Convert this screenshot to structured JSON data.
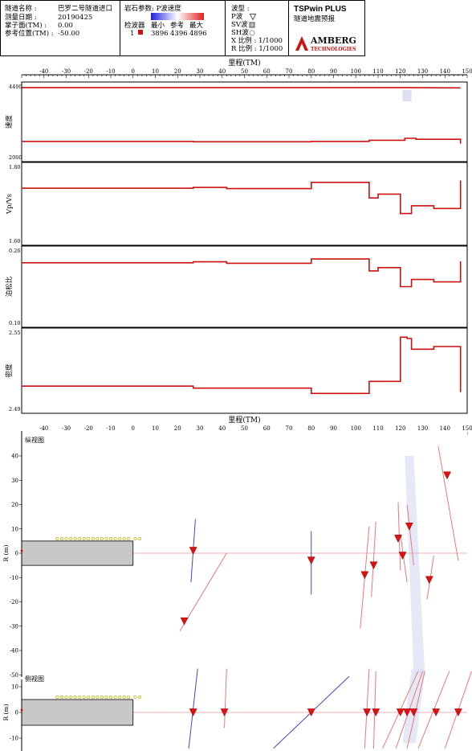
{
  "header": {
    "info_rows": [
      {
        "label": "隧道名称 :",
        "value": "巴罗二号隧道进口"
      },
      {
        "label": "测量日期 :",
        "value": "20190425"
      },
      {
        "label": "掌子面(TM) :",
        "value": "0.00"
      },
      {
        "label": "参考位置(TM) :",
        "value": "-50.00"
      }
    ],
    "rock_param_title": "岩石参数: P波速度",
    "geophone_label": "检波器",
    "geophone_id": "1",
    "col_min": "最小",
    "col_ref": "参考",
    "col_max": "最大",
    "val_min": "3896",
    "val_ref": "4396",
    "val_max": "4896",
    "wave_title": "波型 :",
    "waves": [
      "P波",
      "SV波",
      "SH波"
    ],
    "x_scale": "X 比例 : 1/1000",
    "r_scale": "R 比例 : 1/1000",
    "brand_title": "TSPwin PLUS",
    "brand_subtitle": "隧道地震预报",
    "logo_text_1": "AMBERG",
    "logo_text_2": "TECHNOLOGIES",
    "colors": {
      "min": "#2020e0",
      "max": "#e02020",
      "line": "#cc1111"
    }
  },
  "chart_data": [
    {
      "type": "line",
      "id": "velocity",
      "ylabel": "速度",
      "xlabel": "里程(TM)",
      "ylim": [
        2000,
        4400
      ],
      "ytick_labels": [
        "4400",
        "2000"
      ],
      "x_ticks": [
        -40,
        -30,
        -20,
        -10,
        0,
        10,
        20,
        30,
        40,
        50,
        60,
        70,
        80,
        90,
        100,
        110,
        120,
        130,
        140,
        150
      ],
      "series": [
        {
          "values": [
            [
              -50,
              4300
            ],
            [
              80,
              4300
            ],
            [
              125,
              4300
            ],
            [
              147,
              4290
            ]
          ]
        },
        {
          "values": [
            [
              -50,
              2570
            ],
            [
              27,
              2570
            ],
            [
              27,
              2560
            ],
            [
              80,
              2560
            ],
            [
              80,
              2570
            ],
            [
              106,
              2570
            ],
            [
              106,
              2610
            ],
            [
              122,
              2610
            ],
            [
              122,
              2670
            ],
            [
              127,
              2670
            ],
            [
              127,
              2640
            ],
            [
              147,
              2640
            ],
            [
              147,
              2500
            ]
          ]
        }
      ]
    },
    {
      "type": "line",
      "id": "vpvs",
      "ylabel": "Vp/Vs",
      "ylim": [
        1.6,
        1.8
      ],
      "ytick_labels": [
        "1.80",
        "1.60"
      ],
      "series": [
        {
          "values": [
            [
              -50,
              1.74
            ],
            [
              27,
              1.74
            ],
            [
              27,
              1.742
            ],
            [
              42,
              1.742
            ],
            [
              42,
              1.739
            ],
            [
              80,
              1.739
            ],
            [
              80,
              1.755
            ],
            [
              106,
              1.755
            ],
            [
              106,
              1.715
            ],
            [
              110,
              1.715
            ],
            [
              110,
              1.725
            ],
            [
              120,
              1.725
            ],
            [
              120,
              1.675
            ],
            [
              125,
              1.675
            ],
            [
              125,
              1.695
            ],
            [
              135,
              1.695
            ],
            [
              135,
              1.688
            ],
            [
              147,
              1.688
            ],
            [
              147,
              1.76
            ]
          ]
        }
      ]
    },
    {
      "type": "line",
      "id": "poisson",
      "ylabel": "泊松比",
      "ylim": [
        0.1,
        0.26
      ],
      "ytick_labels": [
        "0.26",
        "0.10"
      ],
      "series": [
        {
          "values": [
            [
              -50,
              0.23
            ],
            [
              27,
              0.23
            ],
            [
              27,
              0.232
            ],
            [
              42,
              0.232
            ],
            [
              42,
              0.229
            ],
            [
              80,
              0.229
            ],
            [
              80,
              0.238
            ],
            [
              106,
              0.238
            ],
            [
              106,
              0.213
            ],
            [
              110,
              0.213
            ],
            [
              110,
              0.22
            ],
            [
              120,
              0.22
            ],
            [
              120,
              0.18
            ],
            [
              125,
              0.18
            ],
            [
              125,
              0.195
            ],
            [
              135,
              0.195
            ],
            [
              135,
              0.19
            ],
            [
              147,
              0.19
            ],
            [
              147,
              0.233
            ]
          ]
        }
      ]
    },
    {
      "type": "line",
      "id": "density",
      "ylabel": "密度",
      "ylim": [
        2.49,
        2.55
      ],
      "ytick_labels": [
        "2.55",
        "2.49"
      ],
      "series": [
        {
          "values": [
            [
              -50,
              2.5085
            ],
            [
              27,
              2.5085
            ],
            [
              27,
              2.507
            ],
            [
              80,
              2.507
            ],
            [
              80,
              2.503
            ],
            [
              106,
              2.503
            ],
            [
              106,
              2.512
            ],
            [
              120,
              2.512
            ],
            [
              120,
              2.545
            ],
            [
              123,
              2.545
            ],
            [
              123,
              2.544
            ],
            [
              125,
              2.544
            ],
            [
              125,
              2.536
            ],
            [
              135,
              2.536
            ],
            [
              135,
              2.538
            ],
            [
              147,
              2.538
            ],
            [
              147,
              2.504
            ]
          ]
        }
      ]
    },
    {
      "type": "scatter",
      "id": "plan-view",
      "title": "纵视图",
      "xlabel": "里程(TM)",
      "ylabel": "R (m)",
      "ylim": [
        -50,
        45
      ],
      "y_ticks": [
        40,
        30,
        20,
        10,
        0,
        -10,
        -20,
        -30,
        -40,
        -50
      ],
      "tunnel": {
        "x0": -50,
        "x1": 0,
        "r0": -5,
        "r1": 5
      },
      "reflectors": [
        {
          "x": 27,
          "r": 1,
          "color": "#4444cc",
          "line": [
            [
              28,
              14
            ],
            [
              26,
              -12
            ]
          ]
        },
        {
          "x": 23,
          "r": -28,
          "color": "#ee7777",
          "line": [
            [
              42,
              0
            ],
            [
              21,
              -32
            ]
          ]
        },
        {
          "x": 80,
          "r": -3,
          "color": "#4444cc",
          "line": [
            [
              80,
              9
            ],
            [
              80,
              -17
            ]
          ]
        },
        {
          "x": 104,
          "r": -9,
          "color": "#ee7777",
          "line": [
            [
              106,
              11
            ],
            [
              102,
              -31
            ]
          ]
        },
        {
          "x": 108,
          "r": -5,
          "color": "#ee7777",
          "line": [
            [
              109,
              13
            ],
            [
              107,
              -18
            ]
          ]
        },
        {
          "x": 119,
          "r": 6,
          "color": "#ee7777",
          "line": [
            [
              119,
              21
            ],
            [
              120,
              -7
            ]
          ]
        },
        {
          "x": 124,
          "r": 11,
          "color": "#ee7777",
          "line": [
            [
              123,
              20
            ],
            [
              126,
              -5
            ]
          ]
        },
        {
          "x": 121,
          "r": -1,
          "color": "#ee7777",
          "line": [
            [
              120,
              8
            ],
            [
              123,
              -12
            ]
          ]
        },
        {
          "x": 133,
          "r": -11,
          "color": "#ee7777",
          "line": [
            [
              135,
              -1
            ],
            [
              132,
              -19
            ]
          ]
        },
        {
          "x": 141,
          "r": 32,
          "color": "#ee7777",
          "line": [
            [
              137,
              44
            ],
            [
              146,
              -3
            ]
          ]
        }
      ],
      "receivers_x": [
        -34,
        -32,
        -30,
        -28,
        -26,
        -24,
        -22,
        -20,
        -18,
        -16,
        -14,
        -12,
        -10,
        -8,
        -6,
        -4,
        -2,
        1,
        3
      ],
      "shade": [
        [
          122,
          40
        ],
        [
          126,
          40
        ],
        [
          131,
          -50
        ],
        [
          126,
          -50
        ]
      ]
    },
    {
      "type": "scatter",
      "id": "side-view",
      "title": "侧视图",
      "ylabel": "R (m)",
      "ylim": [
        -12,
        17
      ],
      "y_ticks": [
        -10,
        0,
        10
      ],
      "tunnel": {
        "x0": -50,
        "x1": 0,
        "r0": -5,
        "r1": 5
      },
      "reflectors": [
        {
          "x": 27,
          "r": 0,
          "color": "#4444cc",
          "line": [
            [
              25,
              -14
            ],
            [
              29,
              17
            ]
          ]
        },
        {
          "x": 41,
          "r": 0,
          "color": "#ee7777",
          "line": [
            [
              41,
              -6
            ],
            [
              42,
              17
            ]
          ]
        },
        {
          "x": 80,
          "r": 0,
          "color": "#4444cc",
          "line": [
            [
              63,
              -14
            ],
            [
              97,
              14
            ]
          ]
        },
        {
          "x": 105,
          "r": 0,
          "color": "#ee7777",
          "line": [
            [
              104,
              -14
            ],
            [
              106,
              17
            ]
          ]
        },
        {
          "x": 109,
          "r": 0,
          "color": "#ee7777",
          "line": [
            [
              108,
              -14
            ],
            [
              109,
              16
            ]
          ]
        },
        {
          "x": 120,
          "r": 0,
          "color": "#ee7777",
          "line": [
            [
              112,
              -14
            ],
            [
              128,
              16
            ]
          ]
        },
        {
          "x": 123,
          "r": 0,
          "color": "#ee7777",
          "line": [
            [
              118,
              -14
            ],
            [
              130,
              16
            ]
          ]
        },
        {
          "x": 126,
          "r": 0,
          "color": "#ee7777",
          "line": [
            [
              123,
              -14
            ],
            [
              131,
              16
            ]
          ]
        },
        {
          "x": 136,
          "r": 0,
          "color": "#ee7777",
          "line": [
            [
              128,
              -14
            ],
            [
              142,
              16
            ]
          ]
        },
        {
          "x": 146,
          "r": 0,
          "color": "#ee7777",
          "line": [
            [
              140,
              -14
            ],
            [
              152,
              16
            ]
          ]
        }
      ],
      "receivers_x": [
        -34,
        -32,
        -30,
        -28,
        -26,
        -24,
        -22,
        -20,
        -18,
        -16,
        -14,
        -12,
        -10,
        -8,
        -6,
        -4,
        -2,
        1,
        3
      ],
      "shade": [
        [
          121,
          -12
        ],
        [
          127,
          -12
        ],
        [
          131,
          17
        ],
        [
          125,
          17
        ]
      ]
    }
  ]
}
